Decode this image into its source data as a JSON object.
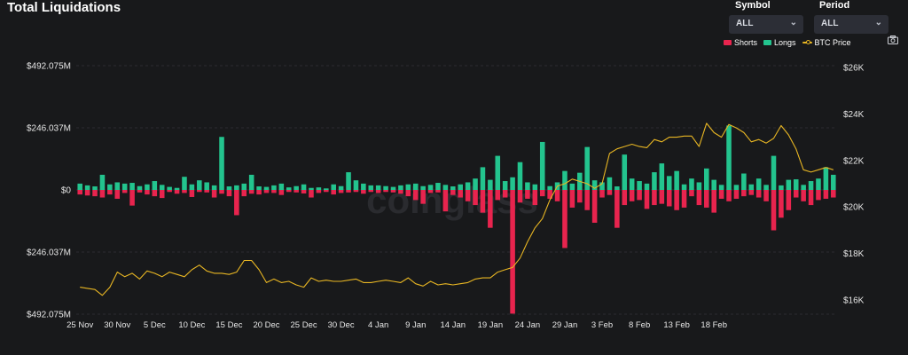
{
  "header": {
    "title": "Total Liquidations",
    "symbol_label": "Symbol",
    "symbol_value": "ALL",
    "period_label": "Period",
    "period_value": "ALL"
  },
  "watermark": "coinglass",
  "colors": {
    "shorts": "#e8244e",
    "longs": "#23c48e",
    "price": "#e8b623",
    "background": "#18191b"
  },
  "icons": {
    "select_chevron": "chevron-down-icon",
    "screenshot": "camera-icon"
  },
  "chart_data": {
    "type": "bar",
    "title": "Total Liquidations",
    "legend": [
      "Shorts",
      "Longs",
      "BTC Price"
    ],
    "legend_position": "top-right",
    "grid": true,
    "x_ticks": [
      "25 Nov",
      "30 Nov",
      "5 Dec",
      "10 Dec",
      "15 Dec",
      "20 Dec",
      "25 Dec",
      "30 Dec",
      "4 Jan",
      "9 Jan",
      "14 Jan",
      "19 Jan",
      "24 Jan",
      "29 Jan",
      "3 Feb",
      "8 Feb",
      "13 Feb",
      "18 Feb"
    ],
    "y_left_ticks": [
      "$492.075M",
      "$246.037M",
      "$0",
      "$246.037M",
      "$492.075M"
    ],
    "y_left_range": [
      -492.075,
      492.075
    ],
    "y_left_unit": "M USD",
    "y_right_ticks": [
      "$26K",
      "$24K",
      "$22K",
      "$20K",
      "$18K",
      "$16K"
    ],
    "y_right_range": [
      15400,
      26300
    ],
    "series": [
      {
        "name": "Longs",
        "values": [
          25,
          18,
          14,
          60,
          22,
          30,
          25,
          28,
          15,
          22,
          35,
          20,
          12,
          8,
          52,
          22,
          38,
          30,
          18,
          210,
          14,
          18,
          25,
          60,
          14,
          12,
          18,
          25,
          10,
          15,
          22,
          8,
          10,
          6,
          22,
          15,
          70,
          38,
          25,
          18,
          18,
          15,
          12,
          18,
          22,
          25,
          15,
          20,
          28,
          20,
          14,
          22,
          30,
          45,
          90,
          40,
          135,
          35,
          50,
          110,
          30,
          22,
          190,
          15,
          30,
          75,
          25,
          68,
          170,
          38,
          30,
          50,
          14,
          140,
          45,
          35,
          25,
          70,
          105,
          55,
          75,
          22,
          45,
          30,
          85,
          40,
          20,
          255,
          20,
          65,
          22,
          45,
          20,
          135,
          18,
          40,
          42,
          20,
          35,
          45,
          90,
          60
        ]
      },
      {
        "name": "Shorts",
        "values": [
          -18,
          -22,
          -25,
          -30,
          -18,
          -35,
          -12,
          -62,
          -10,
          -18,
          -25,
          -32,
          -8,
          -15,
          -12,
          -28,
          -8,
          -10,
          -30,
          -15,
          -25,
          -100,
          -25,
          -15,
          -18,
          -12,
          -12,
          -20,
          -8,
          -10,
          -14,
          -30,
          -12,
          -8,
          -18,
          -12,
          -10,
          -8,
          -15,
          -8,
          -12,
          -8,
          -10,
          -15,
          -25,
          -40,
          -55,
          -12,
          -10,
          -85,
          -20,
          -30,
          -45,
          -60,
          -90,
          -150,
          -40,
          -30,
          -490,
          -50,
          -35,
          -60,
          -25,
          -35,
          -45,
          -230,
          -70,
          -50,
          -80,
          -130,
          -30,
          -20,
          -150,
          -60,
          -45,
          -40,
          -75,
          -60,
          -55,
          -65,
          -80,
          -70,
          -25,
          -60,
          -70,
          -90,
          -35,
          -45,
          -35,
          -25,
          -20,
          -30,
          -45,
          -160,
          -110,
          -80,
          -30,
          -45,
          -60,
          -40,
          -35,
          -30
        ]
      },
      {
        "name": "BTC Price",
        "axis": "right",
        "values": [
          16550,
          16500,
          16450,
          16200,
          16550,
          17200,
          17000,
          17150,
          16900,
          17250,
          17150,
          17000,
          17200,
          17100,
          17000,
          17300,
          17500,
          17250,
          17150,
          17150,
          17100,
          17200,
          17700,
          17700,
          17300,
          16750,
          16900,
          16750,
          16800,
          16650,
          16550,
          16950,
          16800,
          16850,
          16800,
          16800,
          16850,
          16900,
          16750,
          16750,
          16800,
          16850,
          16800,
          16750,
          16950,
          16700,
          16600,
          16800,
          16650,
          16700,
          16650,
          16700,
          16750,
          16900,
          16950,
          16950,
          17200,
          17300,
          17400,
          17800,
          18500,
          19100,
          19500,
          20300,
          20900,
          21000,
          21200,
          21100,
          21000,
          20800,
          21000,
          22300,
          22500,
          22600,
          22700,
          22600,
          22550,
          22900,
          22800,
          23000,
          23000,
          23050,
          23050,
          22600,
          23600,
          23200,
          23000,
          23550,
          23400,
          23200,
          22800,
          22900,
          22750,
          22950,
          23500,
          23100,
          22500,
          21600,
          21500,
          21600,
          21700,
          21600
        ]
      }
    ]
  }
}
